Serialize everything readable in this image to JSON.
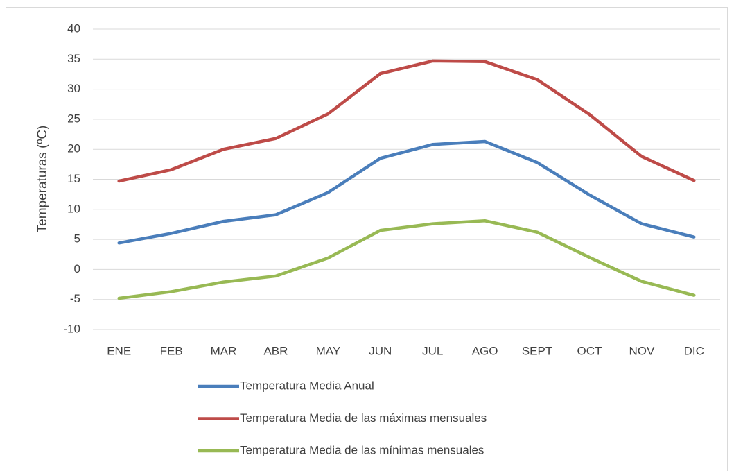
{
  "chart_data": {
    "type": "line",
    "y_label": "Temperaturas (ºC)",
    "categories": [
      "ENE",
      "FEB",
      "MAR",
      "ABR",
      "MAY",
      "JUN",
      "JUL",
      "AGO",
      "SEPT",
      "OCT",
      "NOV",
      "DIC"
    ],
    "series": [
      {
        "name": "Temperatura Media Anual",
        "color": "#4a7ebb",
        "values": [
          4.4,
          6.0,
          8.0,
          9.1,
          12.8,
          18.5,
          20.8,
          21.3,
          17.8,
          12.4,
          7.6,
          5.4
        ]
      },
      {
        "name": "Temperatura Media de las máximas mensuales",
        "color": "#be4b48",
        "values": [
          14.7,
          16.6,
          20.0,
          21.8,
          25.9,
          32.6,
          34.7,
          34.6,
          31.6,
          25.8,
          18.8,
          14.8
        ]
      },
      {
        "name": "Temperatura Media de las mínimas mensuales",
        "color": "#98b954",
        "values": [
          -4.8,
          -3.7,
          -2.1,
          -1.1,
          1.9,
          6.5,
          7.6,
          8.1,
          6.2,
          2.0,
          -2.0,
          -4.3
        ]
      }
    ],
    "ylim": [
      -10,
      40
    ],
    "yticks": [
      -10,
      -5,
      0,
      5,
      10,
      15,
      20,
      25,
      30,
      35,
      40
    ],
    "grid": true,
    "legend": "bottom"
  }
}
